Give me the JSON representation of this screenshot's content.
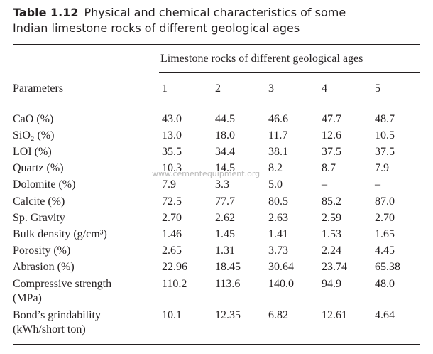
{
  "caption": {
    "label": "Table 1.12",
    "text": "Physical and chemical characteristics of some Indian limestone rocks of different geological ages"
  },
  "table": {
    "spanner": "Limestone rocks of different geological ages",
    "header": [
      "Parameters",
      "1",
      "2",
      "3",
      "4",
      "5"
    ],
    "rows": [
      [
        "CaO (%)",
        "43.0",
        "44.5",
        "46.6",
        "47.7",
        "48.7"
      ],
      [
        "SiO₂ (%)",
        "13.0",
        "18.0",
        "11.7",
        "12.6",
        "10.5"
      ],
      [
        "LOI (%)",
        "35.5",
        "34.4",
        "38.1",
        "37.5",
        "37.5"
      ],
      [
        "Quartz (%)",
        "10.3",
        "14.5",
        "8.2",
        "8.7",
        "7.9"
      ],
      [
        "Dolomite (%)",
        "7.9",
        "3.3",
        "5.0",
        "–",
        "–"
      ],
      [
        "Calcite (%)",
        "72.5",
        "77.7",
        "80.5",
        "85.2",
        "87.0"
      ],
      [
        "Sp. Gravity",
        "2.70",
        "2.62",
        "2.63",
        "2.59",
        "2.70"
      ],
      [
        "Bulk density (g/cm³)",
        "1.46",
        "1.45",
        "1.41",
        "1.53",
        "1.65"
      ],
      [
        "Porosity (%)",
        "2.65",
        "1.31",
        "3.73",
        "2.24",
        "4.45"
      ],
      [
        "Abrasion (%)",
        "22.96",
        "18.45",
        "30.64",
        "23.74",
        "65.38"
      ],
      [
        "Compressive strength (MPa)",
        "110.2",
        "113.6",
        "140.0",
        "94.9",
        "48.0"
      ],
      [
        "Bond’s grindability (kWh/short ton)",
        "10.1",
        "12.35",
        "6.82",
        "12.61",
        "4.64"
      ]
    ]
  },
  "watermark": "www.cementequipment.org"
}
